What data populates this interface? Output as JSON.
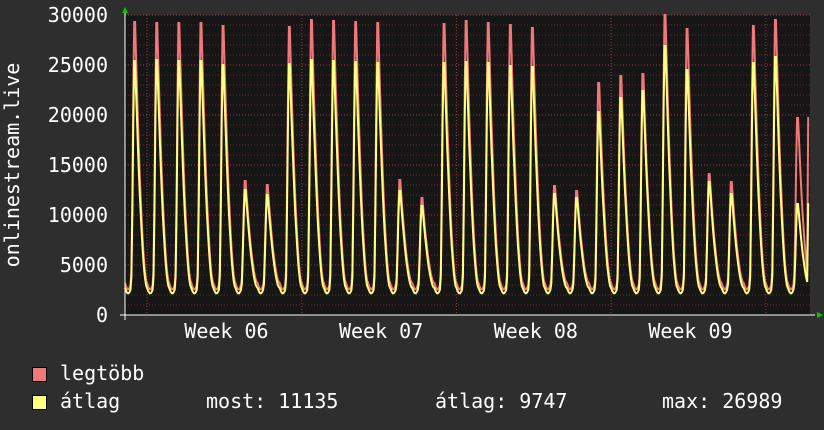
{
  "chart_data": {
    "type": "area",
    "ylabel": "onlinestream.live",
    "ylim": [
      0,
      30000
    ],
    "yticks": [
      0,
      5000,
      10000,
      15000,
      20000,
      25000,
      30000
    ],
    "xticks": [
      "Week 06",
      "Week 07",
      "Week 08",
      "Week 09"
    ],
    "grid": true,
    "series": [
      {
        "name": "legtöbb",
        "color": "#f07878",
        "day_peaks": [
          29300,
          29200,
          29200,
          29200,
          28900,
          13400,
          13000,
          28800,
          29500,
          29400,
          29300,
          29200,
          13500,
          11700,
          29100,
          29400,
          29200,
          29000,
          28700,
          12900,
          12400,
          23200,
          23900,
          24100,
          30000,
          28600,
          14100,
          13300,
          28900,
          29500,
          19700
        ]
      },
      {
        "name": "átlag",
        "color": "#ffff80",
        "day_peaks": [
          25400,
          25500,
          25400,
          25400,
          25000,
          12500,
          12000,
          25100,
          25500,
          25400,
          25300,
          25200,
          12400,
          10900,
          25200,
          25300,
          25200,
          24900,
          24800,
          12100,
          11700,
          20300,
          21700,
          22400,
          26900,
          24500,
          13300,
          12100,
          25200,
          25800,
          11100
        ]
      }
    ]
  },
  "legend": [
    {
      "label": "legtöbb",
      "color": "#f07878"
    },
    {
      "label": "átlag",
      "color": "#ffff80"
    }
  ],
  "stats": {
    "most": "most: 11135",
    "atlag": "átlag: 9747",
    "max": "max: 26989"
  }
}
